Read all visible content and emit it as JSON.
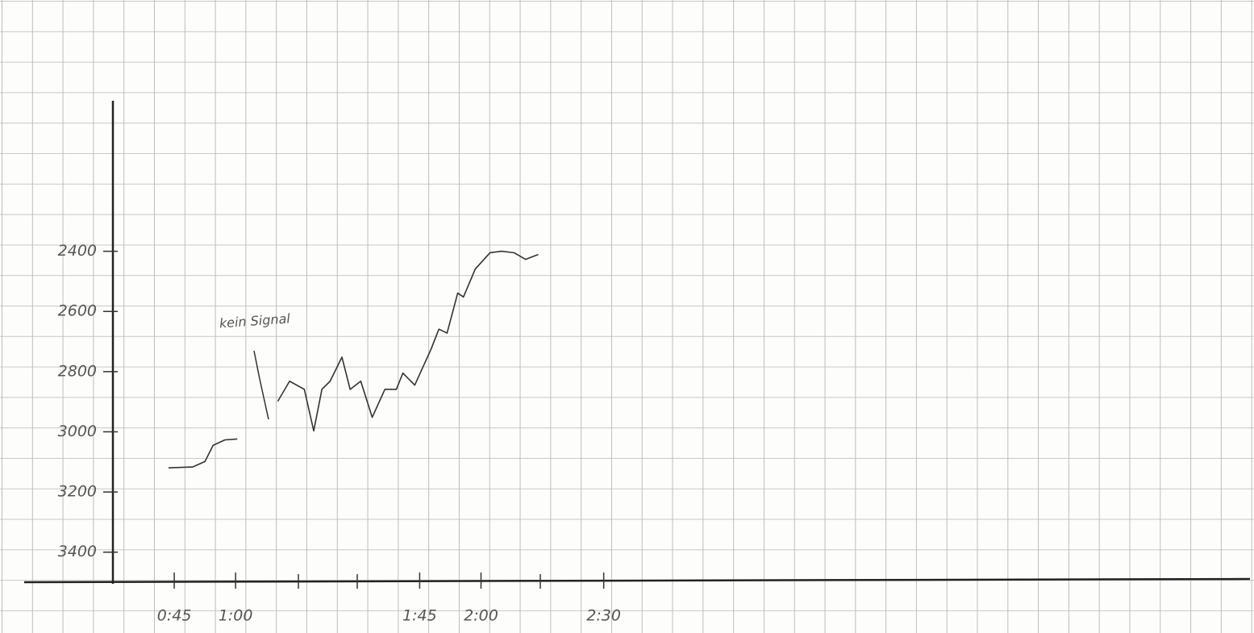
{
  "chart_data": {
    "type": "line",
    "annotation": "kein Signal",
    "x": [
      43.6,
      49.5,
      52.5,
      54.5,
      57.4,
      60.4,
      null,
      70.3,
      73.2,
      76.8,
      79.1,
      81.1,
      83.1,
      86.0,
      88.0,
      90.6,
      93.4,
      96.5,
      99.3,
      100.9,
      103.8,
      107.8,
      109.7,
      111.7,
      114.3,
      115.7,
      118.6,
      122.2,
      125.0,
      128.1,
      130.9,
      134.0
    ],
    "series": [
      {
        "color": "#333333",
        "values": [
          3120,
          3117,
          3099,
          3045,
          3027,
          3024,
          null,
          2899,
          2832,
          2859,
          2997,
          2859,
          2832,
          2752,
          2859,
          2832,
          2952,
          2859,
          2859,
          2805,
          2845,
          2725,
          2659,
          2672,
          2539,
          2552,
          2459,
          2405,
          2400,
          2405,
          2427,
          2411
        ]
      }
    ],
    "xlim": [
      30,
      308
    ],
    "xticks": [
      {
        "value": 45,
        "label": "0:45"
      },
      {
        "value": 60,
        "label": "1:00"
      },
      {
        "value": 105,
        "label": "1:45"
      },
      {
        "value": 120,
        "label": "2:00"
      },
      {
        "value": 150,
        "label": "2:30"
      }
    ],
    "ylim": [
      3500,
      1900
    ],
    "yticks": [
      2400,
      2600,
      2800,
      3000,
      3200,
      3400
    ]
  }
}
